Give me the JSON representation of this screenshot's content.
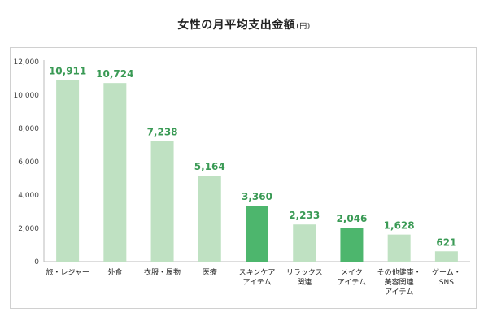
{
  "title": "女性の月平均支出金額",
  "unit": "(円)",
  "colors": {
    "light": "#bfe1c2",
    "dark": "#4db66d",
    "value_label": "#3a9a55",
    "axis": "#bbbbbb"
  },
  "chart_data": {
    "type": "bar",
    "title": "女性の月平均支出金額",
    "unit": "(円)",
    "ylim": [
      0,
      12000
    ],
    "yticks": [
      "0",
      "2,000",
      "4,000",
      "6,000",
      "8,000",
      "10,000",
      "12,000"
    ],
    "ytick_values": [
      0,
      2000,
      4000,
      6000,
      8000,
      10000,
      12000
    ],
    "grid": false,
    "categories": [
      [
        "旅・レジャー"
      ],
      [
        "外食"
      ],
      [
        "衣服・履物"
      ],
      [
        "医療"
      ],
      [
        "スキンケア",
        "アイテム"
      ],
      [
        "リラックス",
        "関連"
      ],
      [
        "メイク",
        "アイテム"
      ],
      [
        "その他健康・",
        "美容関連",
        "アイテム"
      ],
      [
        "ゲーム・",
        "SNS"
      ]
    ],
    "values": [
      10911,
      10724,
      7238,
      5164,
      3360,
      2233,
      2046,
      1628,
      621
    ],
    "value_labels": [
      "10,911",
      "10,724",
      "7,238",
      "5,164",
      "3,360",
      "2,233",
      "2,046",
      "1,628",
      "621"
    ],
    "highlight": [
      false,
      false,
      false,
      false,
      true,
      false,
      true,
      false,
      false
    ]
  }
}
